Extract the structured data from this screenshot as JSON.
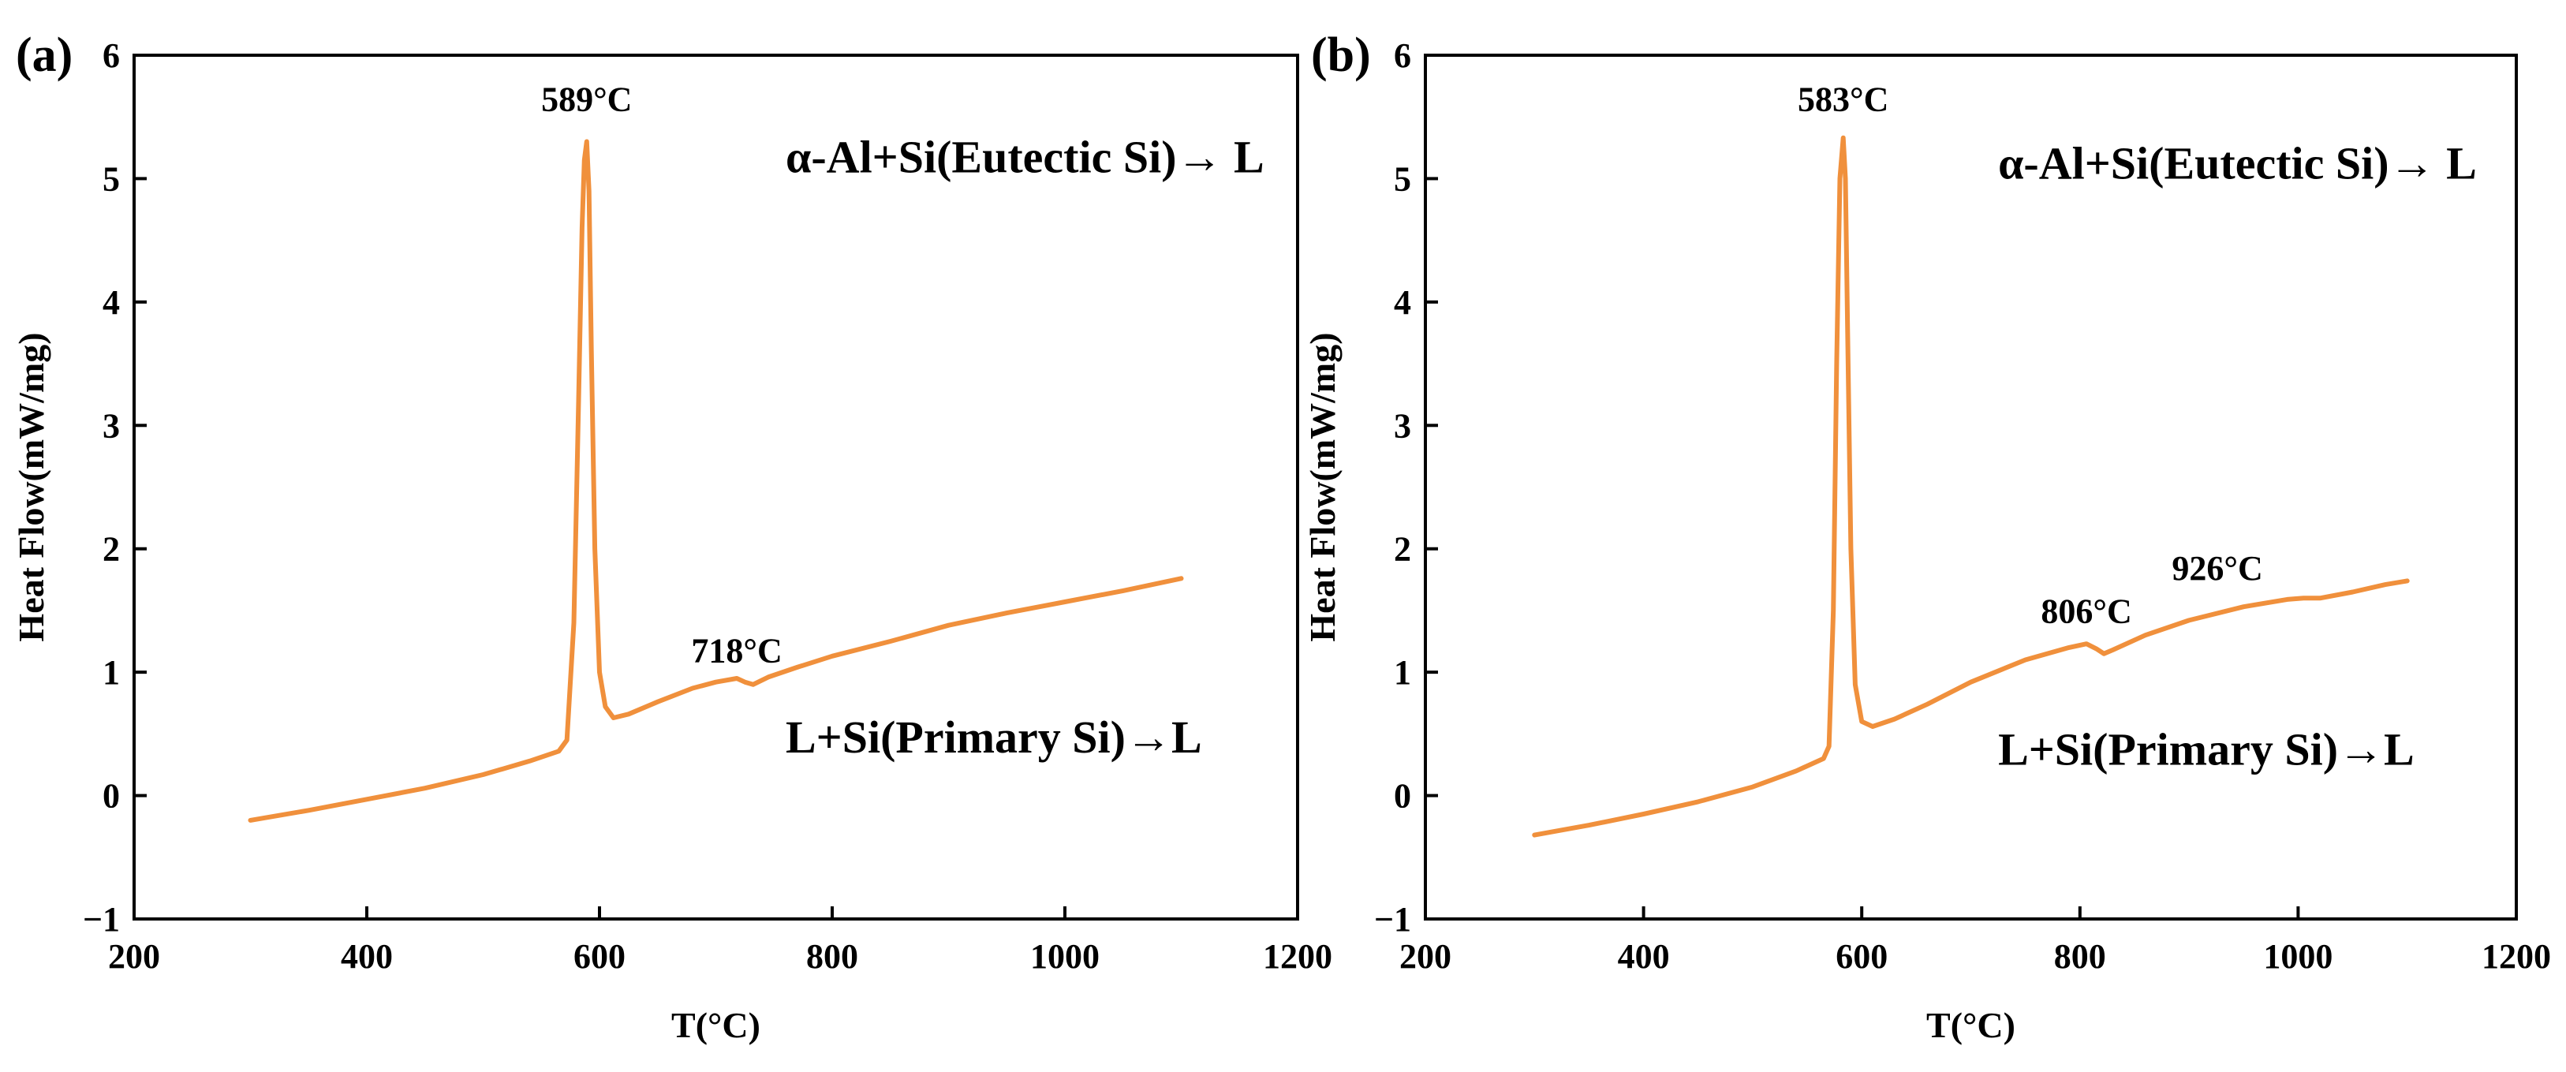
{
  "chart_data": [
    {
      "panel_label": "(a)",
      "type": "line",
      "xlabel": "T(°C)",
      "ylabel": "Heat Flow(mW/mg)",
      "xlim": [
        200,
        1200
      ],
      "ylim": [
        -1,
        6
      ],
      "xticks": [
        200,
        400,
        600,
        800,
        1000,
        1200
      ],
      "yticks": [
        -1,
        0,
        1,
        2,
        3,
        4,
        5,
        6
      ],
      "ytick_labels": [
        "−1",
        "0",
        "1",
        "2",
        "3",
        "4",
        "5",
        "6"
      ],
      "grid": false,
      "line_color": "#F0903C",
      "series": [
        {
          "x": [
            300,
            350,
            400,
            450,
            500,
            540,
            565,
            572,
            578,
            582,
            585,
            587,
            589,
            591,
            593,
            596,
            600,
            605,
            612,
            625,
            650,
            680,
            700,
            718,
            725,
            732,
            745,
            770,
            800,
            850,
            900,
            950,
            1000,
            1050,
            1090,
            1100
          ],
          "y": [
            -0.2,
            -0.12,
            -0.03,
            0.06,
            0.17,
            0.28,
            0.36,
            0.45,
            1.4,
            3.2,
            4.6,
            5.15,
            5.3,
            4.9,
            3.6,
            2.0,
            1.0,
            0.72,
            0.63,
            0.66,
            0.76,
            0.87,
            0.92,
            0.95,
            0.92,
            0.9,
            0.96,
            1.04,
            1.13,
            1.25,
            1.38,
            1.48,
            1.57,
            1.66,
            1.74,
            1.76
          ]
        }
      ],
      "annotations": [
        {
          "text": "589°C",
          "x": 589,
          "y": 5.55
        },
        {
          "text": "718°C",
          "x": 718,
          "y": 1.08
        },
        {
          "text": "α-Al+Si(Eutectic Si)→ L",
          "x": 760,
          "y": 5.05
        },
        {
          "text": "L+Si(Primary Si)→L",
          "x": 760,
          "y": 0.35
        }
      ]
    },
    {
      "panel_label": "(b)",
      "type": "line",
      "xlabel": "T(°C)",
      "ylabel": "Heat Flow(mW/mg)",
      "xlim": [
        200,
        1200
      ],
      "ylim": [
        -1,
        6
      ],
      "xticks": [
        200,
        400,
        600,
        800,
        1000,
        1200
      ],
      "yticks": [
        -1,
        0,
        1,
        2,
        3,
        4,
        5,
        6
      ],
      "ytick_labels": [
        "−1",
        "0",
        "1",
        "2",
        "3",
        "4",
        "5",
        "6"
      ],
      "grid": false,
      "line_color": "#F0903C",
      "series": [
        {
          "x": [
            300,
            350,
            400,
            450,
            500,
            540,
            565,
            570,
            574,
            577,
            580,
            583,
            585,
            587,
            590,
            594,
            600,
            610,
            630,
            660,
            700,
            750,
            790,
            806,
            815,
            822,
            830,
            860,
            900,
            950,
            990,
            1005,
            1020,
            1050,
            1080,
            1100
          ],
          "y": [
            -0.32,
            -0.24,
            -0.15,
            -0.05,
            0.07,
            0.2,
            0.3,
            0.4,
            1.5,
            3.5,
            5.0,
            5.33,
            5.0,
            3.8,
            2.0,
            0.9,
            0.6,
            0.56,
            0.62,
            0.74,
            0.92,
            1.1,
            1.2,
            1.23,
            1.19,
            1.15,
            1.18,
            1.3,
            1.42,
            1.53,
            1.59,
            1.6,
            1.6,
            1.65,
            1.71,
            1.74
          ]
        }
      ],
      "annotations": [
        {
          "text": "583°C",
          "x": 583,
          "y": 5.55
        },
        {
          "text": "806°C",
          "x": 806,
          "y": 1.4
        },
        {
          "text": "926°C",
          "x": 926,
          "y": 1.75
        },
        {
          "text": "α-Al+Si(Eutectic Si)→ L",
          "x": 725,
          "y": 5.0
        },
        {
          "text": "L+Si(Primary Si)→L",
          "x": 725,
          "y": 0.25
        }
      ]
    }
  ]
}
